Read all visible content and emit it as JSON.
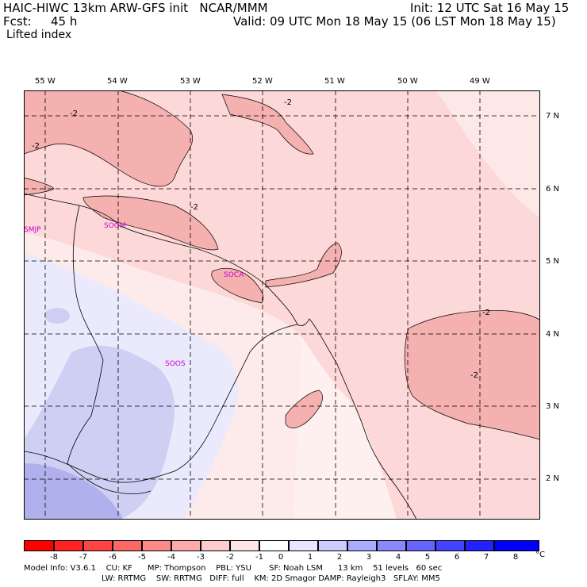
{
  "header": {
    "model_line": "HAIC-HIWC 13km ARW-GFS init   NCAR/MMM",
    "init": "Init: 12 UTC Sat 16 May 15",
    "fcst_label": "Fcst:",
    "fcst_value": "45 h",
    "valid": "Valid: 09 UTC Mon 18 May 15 (06 LST Mon 18 May 15)",
    "field": "Lifted index"
  },
  "map": {
    "lon_labels": [
      "55 W",
      "54 W",
      "53 W",
      "52 W",
      "51 W",
      "50 W",
      "49 W"
    ],
    "lat_labels": [
      "7 N",
      "6 N",
      "5 N",
      "4 N",
      "3 N",
      "2 N"
    ],
    "stations": [
      "SMJP",
      "SOGM",
      "SOCA",
      "SOOS"
    ],
    "contour_label": "-2",
    "colors": {
      "warm_light": "#fde4e4",
      "warm_mid": "#f8b8b8",
      "warm_dark": "#f08c8c",
      "cool_light": "#e8e8fc",
      "cool_mid": "#c8c8f4",
      "cool_dark": "#a8a8ec",
      "station": "#cc00cc"
    }
  },
  "colorbar": {
    "unit": "°C",
    "labels": [
      "-8",
      "-7",
      "-6",
      "-5",
      "-4",
      "-3",
      "-2",
      "-1",
      "0",
      "1",
      "2",
      "3",
      "4",
      "5",
      "6",
      "7",
      "8"
    ],
    "colors": [
      "#ff0000",
      "#ff2222",
      "#ff4444",
      "#ff6666",
      "#ff8888",
      "#ffaaaa",
      "#ffcccc",
      "#ffe6e6",
      "#ffffff",
      "#e6e6ff",
      "#ccccff",
      "#aaaaff",
      "#8888ff",
      "#6666ff",
      "#4444ff",
      "#2222ff",
      "#0000ff"
    ]
  },
  "footer": {
    "line1": "Model Info: V3.6.1    CU: KF      MP: Thompson    PBL: YSU       SF: Noah LSM      13 km    51 levels   60 sec",
    "line2": "LW: RRTMG    SW: RRTMG   DIFF: full    KM: 2D Smagor DAMP: Rayleigh3   SFLAY: MM5"
  }
}
